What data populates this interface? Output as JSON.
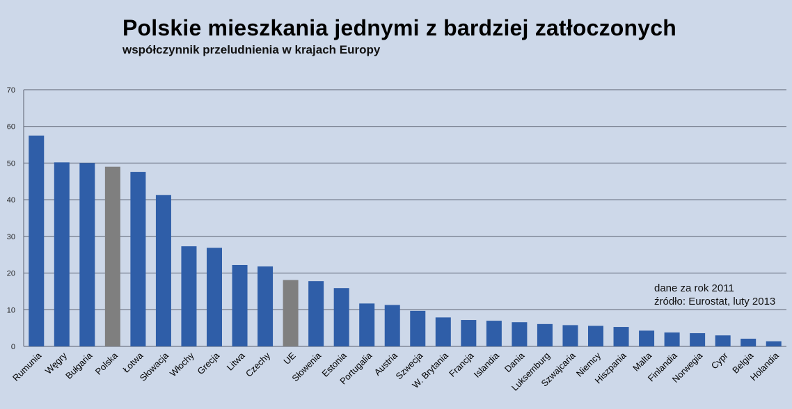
{
  "chart_data": {
    "type": "bar",
    "title": "Polskie mieszkania jednymi z bardziej zatłoczonych",
    "subtitle": "współczynnik przeludnienia w krajach Europy",
    "categories": [
      "Rumunia",
      "Węgry",
      "Bułgaria",
      "Polska",
      "Łotwa",
      "Słowacja",
      "Włochy",
      "Grecja",
      "Litwa",
      "Czechy",
      "UE",
      "Słowenia",
      "Estonia",
      "Portugalia",
      "Austria",
      "Szwecja",
      "W. Brytania",
      "Francja",
      "Islandia",
      "Dania",
      "Luksemburg",
      "Szwajcaria",
      "Niemcy",
      "Hiszpania",
      "Malta",
      "Finlandia",
      "Norwegia",
      "Cypr",
      "Belgia",
      "Holandia"
    ],
    "values": [
      57.5,
      50.2,
      50.0,
      49.0,
      47.6,
      41.3,
      27.3,
      26.9,
      22.2,
      21.8,
      18.1,
      17.8,
      15.9,
      11.7,
      11.3,
      9.7,
      7.9,
      7.2,
      7.0,
      6.6,
      6.1,
      5.8,
      5.6,
      5.3,
      4.3,
      3.8,
      3.6,
      3.0,
      2.1,
      1.4
    ],
    "highlight": [
      "Polska",
      "UE"
    ],
    "ylim": [
      0,
      70
    ],
    "yticks": [
      0,
      10,
      20,
      30,
      40,
      50,
      60,
      70
    ],
    "xlabel": "",
    "ylabel": "",
    "grid": true,
    "colors": {
      "bar": "#2f5ea8",
      "highlight": "#7f7f7f",
      "grid": "#5a6170",
      "background": "#cdd8e9"
    }
  },
  "note": {
    "line1": "dane za rok 2011",
    "line2": "źródło: Eurostat, luty 2013"
  }
}
